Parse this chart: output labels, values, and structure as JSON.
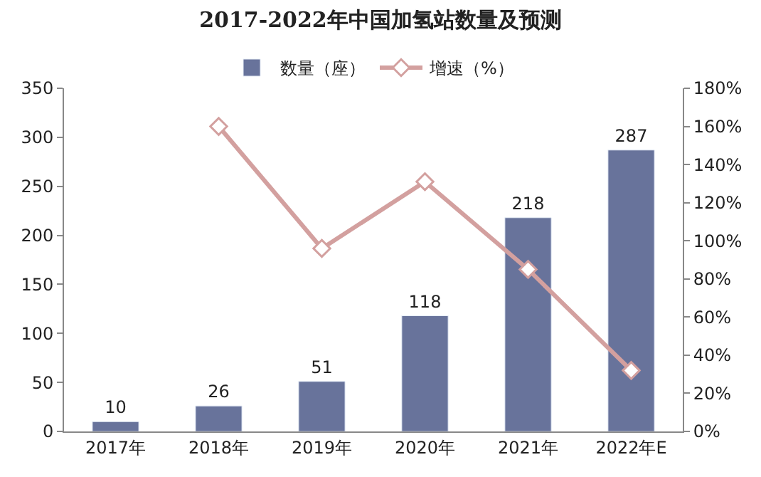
{
  "chart_data": {
    "type": "bar",
    "title": "2017-2022年中国加氢站数量及预测",
    "categories": [
      "2017年",
      "2018年",
      "2019年",
      "2020年",
      "2021年",
      "2022年E"
    ],
    "series": [
      {
        "name": "数量（座）",
        "color": "#68739b",
        "values": [
          10,
          26,
          51,
          118,
          218,
          287
        ],
        "data_labels": true
      },
      {
        "name": "增速（%）",
        "type": "line",
        "axis": "y2",
        "color": "#d3a09f",
        "marker": "diamond",
        "values": [
          null,
          160,
          96,
          131,
          85,
          32
        ]
      }
    ],
    "ylim": [
      0,
      350
    ],
    "yticks": [
      0,
      50,
      100,
      150,
      200,
      250,
      300,
      350
    ],
    "y2lim": [
      0,
      180
    ],
    "y2ticks": [
      {
        "value": 0,
        "label": "0%"
      },
      {
        "value": 20,
        "label": "20%"
      },
      {
        "value": 40,
        "label": "40%"
      },
      {
        "value": 60,
        "label": "60%"
      },
      {
        "value": 80,
        "label": "80%"
      },
      {
        "value": 100,
        "label": "100%"
      },
      {
        "value": 120,
        "label": "120%"
      },
      {
        "value": 140,
        "label": "140%"
      },
      {
        "value": 160,
        "label": "160%"
      },
      {
        "value": 180,
        "label": "180%"
      }
    ],
    "legend": "top"
  }
}
